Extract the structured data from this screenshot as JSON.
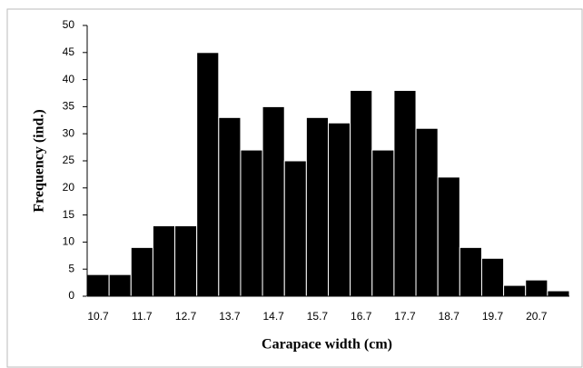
{
  "chart_data": {
    "type": "bar",
    "x_label": "Carapace width (cm)",
    "y_label": "Frequency (ind.)",
    "categories": [
      "10.7",
      null,
      "11.7",
      null,
      "12.7",
      null,
      "13.7",
      null,
      "14.7",
      null,
      "15.7",
      null,
      "16.7",
      null,
      "17.7",
      null,
      "18.7",
      null,
      "19.7",
      null,
      "20.7",
      null
    ],
    "values": [
      4,
      4,
      9,
      13,
      13,
      45,
      33,
      27,
      35,
      25,
      33,
      32,
      38,
      27,
      38,
      31,
      22,
      9,
      7,
      2,
      3,
      1
    ],
    "color": "#000000",
    "ylim": [
      0,
      50
    ],
    "yticks": [
      0,
      5,
      10,
      15,
      20,
      25,
      30,
      35,
      40,
      45,
      50
    ]
  }
}
